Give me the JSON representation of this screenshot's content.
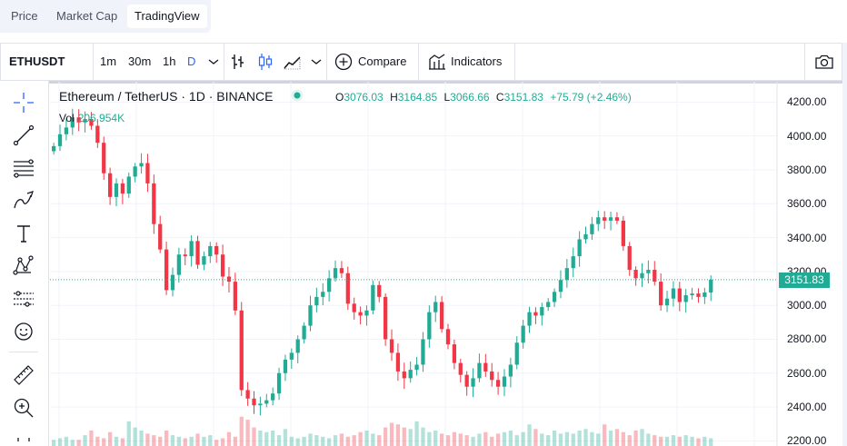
{
  "tabs": [
    {
      "label": "Price"
    },
    {
      "label": "Market Cap"
    },
    {
      "label": "TradingView"
    }
  ],
  "toolbar": {
    "symbol": "ETHUSDT",
    "intervals": [
      "1m",
      "30m",
      "1h",
      "D"
    ],
    "compare_label": "Compare",
    "indicators_label": "Indicators"
  },
  "legend": {
    "title": "Ethereum / TetherUS · 1D · BINANCE",
    "o_key": "O",
    "o_val": "3076.03",
    "h_key": "H",
    "h_val": "3164.85",
    "l_key": "L",
    "l_val": "3066.66",
    "c_key": "C",
    "c_val": "3151.83",
    "change": "+75.79 (+2.46%)",
    "vol_label": "Vol",
    "vol_value": "206.954K"
  },
  "colors": {
    "up": "#22ab94",
    "down": "#f23645",
    "accent": "#2962ff"
  },
  "chart_data": {
    "type": "candlestick",
    "y_ticks": [
      "4200.00",
      "4000.00",
      "3800.00",
      "3600.00",
      "3400.00",
      "3200.00",
      "3000.00",
      "2800.00",
      "2600.00",
      "2400.00",
      "2200.00"
    ],
    "ylim": [
      2170,
      4320
    ],
    "last_price": "3151.83",
    "closes": [
      3940,
      4010,
      4050,
      4110,
      4080,
      4100,
      4060,
      3960,
      3780,
      3640,
      3720,
      3660,
      3760,
      3820,
      3840,
      3720,
      3480,
      3330,
      3090,
      3180,
      3300,
      3290,
      3380,
      3240,
      3290,
      3350,
      3300,
      3170,
      3140,
      2970,
      2500,
      2450,
      2410,
      2420,
      2440,
      2480,
      2600,
      2680,
      2720,
      2800,
      2880,
      3000,
      3050,
      3080,
      3160,
      3220,
      3190,
      3010,
      2960,
      2940,
      2970,
      3120,
      3050,
      2800,
      2720,
      2610,
      2570,
      2620,
      2650,
      2800,
      2960,
      3020,
      2860,
      2770,
      2660,
      2590,
      2520,
      2570,
      2660,
      2610,
      2560,
      2520,
      2580,
      2650,
      2780,
      2880,
      2960,
      2940,
      2990,
      3020,
      3080,
      3150,
      3220,
      3290,
      3390,
      3420,
      3480,
      3520,
      3500,
      3520,
      3500,
      3350,
      3210,
      3160,
      3190,
      3210,
      3140,
      3000,
      3040,
      3100,
      3020,
      3060,
      3070,
      3050,
      3076,
      3151.83
    ],
    "volumes": [
      0.2,
      0.25,
      0.3,
      0.2,
      0.2,
      0.35,
      0.5,
      0.3,
      0.25,
      0.45,
      0.3,
      0.25,
      0.8,
      0.6,
      0.5,
      0.4,
      0.35,
      0.3,
      0.5,
      0.35,
      0.3,
      0.25,
      0.3,
      0.4,
      0.3,
      0.35,
      0.2,
      0.25,
      0.45,
      0.3,
      0.95,
      0.85,
      0.6,
      0.5,
      0.45,
      0.5,
      0.35,
      0.55,
      0.3,
      0.25,
      0.3,
      0.4,
      0.35,
      0.3,
      0.25,
      0.35,
      0.4,
      0.3,
      0.35,
      0.45,
      0.5,
      0.4,
      0.35,
      0.6,
      0.75,
      0.7,
      0.6,
      0.55,
      0.8,
      0.6,
      0.45,
      0.5,
      0.4,
      0.35,
      0.45,
      0.4,
      0.35,
      0.3,
      0.4,
      0.45,
      0.3,
      0.4,
      0.45,
      0.5,
      0.35,
      0.45,
      0.7,
      0.55,
      0.4,
      0.35,
      0.5,
      0.4,
      0.45,
      0.4,
      0.5,
      0.55,
      0.45,
      0.4,
      0.7,
      0.5,
      0.55,
      0.45,
      0.35,
      0.5,
      0.55,
      0.4,
      0.35,
      0.3,
      0.3,
      0.35,
      0.3,
      0.35,
      0.3,
      0.25,
      0.3,
      0.25
    ]
  }
}
